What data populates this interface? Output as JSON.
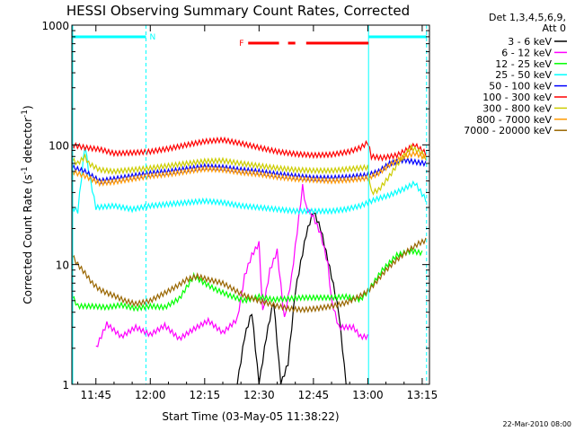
{
  "chart_data": {
    "type": "line",
    "title": "HESSI Observing Summary Count Rates, Corrected",
    "xlabel": "Start Time (03-May-05 11:38:22)",
    "ylabel_main": "Corrected Count Rate (s",
    "ylabel_sup1": "-1",
    "ylabel_mid": " detector",
    "ylabel_sup2": "-1",
    "ylabel_end": ")",
    "y_scale": "log",
    "ylim": [
      1,
      1000
    ],
    "x_range_minutes": [
      698.37,
      797.0
    ],
    "x_ticks": [
      {
        "label": "11:45",
        "minute": 705
      },
      {
        "label": "12:00",
        "minute": 720
      },
      {
        "label": "12:15",
        "minute": 735
      },
      {
        "label": "12:30",
        "minute": 750
      },
      {
        "label": "12:45",
        "minute": 765
      },
      {
        "label": "13:00",
        "minute": 780
      },
      {
        "label": "13:15",
        "minute": 795
      }
    ],
    "y_ticks": [
      {
        "label": "1",
        "value": 1
      },
      {
        "label": "10",
        "value": 10
      },
      {
        "label": "100",
        "value": 100
      },
      {
        "label": "1000",
        "value": 1000
      }
    ],
    "legend": {
      "position": "right",
      "header": [
        "Det 1,3,4,5,6,9,",
        "Att 0"
      ]
    },
    "series": [
      {
        "name": "3 - 6 keV",
        "color": "#000000",
        "points": [
          [
            744,
            1.0
          ],
          [
            746,
            2.5
          ],
          [
            748,
            4.0
          ],
          [
            750,
            1.0
          ],
          [
            752,
            2.5
          ],
          [
            754,
            5.0
          ],
          [
            756,
            1.0
          ],
          [
            758,
            1.5
          ],
          [
            760,
            6.0
          ],
          [
            763,
            18.0
          ],
          [
            765,
            28.0
          ],
          [
            767,
            20.0
          ],
          [
            770,
            8.0
          ],
          [
            772,
            4.0
          ],
          [
            774,
            1.0
          ]
        ]
      },
      {
        "name": "6 - 12 keV",
        "color": "#ff00ff",
        "points": [
          [
            705,
            2.0
          ],
          [
            708,
            3.2
          ],
          [
            712,
            2.5
          ],
          [
            716,
            3.0
          ],
          [
            720,
            2.6
          ],
          [
            724,
            3.1
          ],
          [
            728,
            2.4
          ],
          [
            732,
            2.9
          ],
          [
            736,
            3.4
          ],
          [
            740,
            2.7
          ],
          [
            744,
            3.5
          ],
          [
            746,
            8.0
          ],
          [
            748,
            12.0
          ],
          [
            750,
            15.0
          ],
          [
            751,
            4.0
          ],
          [
            753,
            9.0
          ],
          [
            755,
            13.0
          ],
          [
            757,
            3.5
          ],
          [
            759,
            8.0
          ],
          [
            761,
            25.0
          ],
          [
            762,
            45.0
          ],
          [
            763,
            30.0
          ],
          [
            765,
            25.0
          ],
          [
            767,
            18.0
          ],
          [
            769,
            10.0
          ],
          [
            770,
            5.0
          ],
          [
            772,
            3.0
          ],
          [
            776,
            3.0
          ],
          [
            778,
            2.5
          ],
          [
            780,
            2.5
          ]
        ]
      },
      {
        "name": "12 - 25 keV",
        "color": "#00ff00",
        "points": [
          [
            698.4,
            5.5
          ],
          [
            700,
            4.5
          ],
          [
            704,
            4.5
          ],
          [
            708,
            4.4
          ],
          [
            712,
            4.6
          ],
          [
            716,
            4.3
          ],
          [
            720,
            4.5
          ],
          [
            724,
            4.4
          ],
          [
            728,
            5.2
          ],
          [
            732,
            8.0
          ],
          [
            735,
            7.0
          ],
          [
            738,
            6.2
          ],
          [
            742,
            5.5
          ],
          [
            746,
            5.0
          ],
          [
            750,
            5.4
          ],
          [
            754,
            5.1
          ],
          [
            758,
            5.2
          ],
          [
            762,
            5.3
          ],
          [
            766,
            5.3
          ],
          [
            770,
            5.3
          ],
          [
            774,
            5.4
          ],
          [
            778,
            5.1
          ],
          [
            780,
            6.0
          ],
          [
            784,
            9.0
          ],
          [
            788,
            12.0
          ],
          [
            792,
            13.0
          ],
          [
            795,
            12.5
          ]
        ]
      },
      {
        "name": "25 - 50 keV",
        "color": "#00ffff",
        "points": [
          [
            698.4,
            30.0
          ],
          [
            700,
            28.0
          ],
          [
            702,
            100.0
          ],
          [
            703,
            60.0
          ],
          [
            705,
            30.0
          ],
          [
            710,
            31.0
          ],
          [
            715,
            29.0
          ],
          [
            720,
            31.0
          ],
          [
            725,
            32.0
          ],
          [
            730,
            33.0
          ],
          [
            735,
            34.0
          ],
          [
            740,
            33.0
          ],
          [
            745,
            31.0
          ],
          [
            750,
            30.0
          ],
          [
            755,
            29.0
          ],
          [
            760,
            28.0
          ],
          [
            765,
            28.0
          ],
          [
            770,
            28.0
          ],
          [
            774,
            29.0
          ],
          [
            778,
            31.0
          ],
          [
            782,
            35.0
          ],
          [
            786,
            38.0
          ],
          [
            790,
            43.0
          ],
          [
            793,
            48.0
          ],
          [
            796,
            35.0
          ]
        ]
      },
      {
        "name": "50 - 100 keV",
        "color": "#0000ff",
        "points": [
          [
            698.4,
            65.0
          ],
          [
            702,
            60.0
          ],
          [
            706,
            50.0
          ],
          [
            710,
            52.0
          ],
          [
            715,
            55.0
          ],
          [
            720,
            58.0
          ],
          [
            725,
            60.0
          ],
          [
            730,
            63.0
          ],
          [
            735,
            66.0
          ],
          [
            740,
            65.0
          ],
          [
            745,
            62.0
          ],
          [
            750,
            60.0
          ],
          [
            755,
            57.0
          ],
          [
            760,
            55.0
          ],
          [
            765,
            53.0
          ],
          [
            770,
            53.0
          ],
          [
            775,
            54.0
          ],
          [
            780,
            56.0
          ],
          [
            783,
            60.0
          ],
          [
            786,
            70.0
          ],
          [
            790,
            75.0
          ],
          [
            793,
            72.0
          ],
          [
            796,
            70.0
          ]
        ]
      },
      {
        "name": "100 - 300 keV",
        "color": "#ff0000",
        "points": [
          [
            698.4,
            100.0
          ],
          [
            702,
            95.0
          ],
          [
            706,
            92.0
          ],
          [
            710,
            85.0
          ],
          [
            715,
            86.0
          ],
          [
            720,
            88.0
          ],
          [
            725,
            93.0
          ],
          [
            730,
            100.0
          ],
          [
            735,
            107.0
          ],
          [
            740,
            110.0
          ],
          [
            745,
            103.0
          ],
          [
            750,
            95.0
          ],
          [
            755,
            88.0
          ],
          [
            760,
            84.0
          ],
          [
            765,
            82.0
          ],
          [
            770,
            83.0
          ],
          [
            775,
            88.0
          ],
          [
            778,
            95.0
          ],
          [
            780,
            105.0
          ],
          [
            781,
            80.0
          ],
          [
            784,
            78.0
          ],
          [
            788,
            82.0
          ],
          [
            791,
            92.0
          ],
          [
            793,
            100.0
          ],
          [
            796,
            85.0
          ]
        ]
      },
      {
        "name": "300 - 800 keV",
        "color": "#cccc00",
        "points": [
          [
            698.4,
            75.0
          ],
          [
            700,
            70.0
          ],
          [
            702,
            80.0
          ],
          [
            703,
            70.0
          ],
          [
            706,
            62.0
          ],
          [
            710,
            60.0
          ],
          [
            715,
            62.0
          ],
          [
            720,
            64.0
          ],
          [
            725,
            67.0
          ],
          [
            730,
            70.0
          ],
          [
            735,
            73.0
          ],
          [
            740,
            74.0
          ],
          [
            745,
            70.0
          ],
          [
            750,
            67.0
          ],
          [
            755,
            64.0
          ],
          [
            760,
            62.0
          ],
          [
            765,
            61.0
          ],
          [
            770,
            61.0
          ],
          [
            775,
            63.0
          ],
          [
            780,
            65.0
          ],
          [
            781,
            40.0
          ],
          [
            783,
            42.0
          ],
          [
            786,
            55.0
          ],
          [
            789,
            75.0
          ],
          [
            792,
            95.0
          ],
          [
            795,
            85.0
          ],
          [
            796,
            78.0
          ]
        ]
      },
      {
        "name": "800 - 7000 keV",
        "color": "#ff9900",
        "points": [
          [
            698.4,
            60.0
          ],
          [
            702,
            55.0
          ],
          [
            706,
            48.0
          ],
          [
            710,
            49.0
          ],
          [
            715,
            52.0
          ],
          [
            720,
            55.0
          ],
          [
            725,
            57.0
          ],
          [
            730,
            60.0
          ],
          [
            735,
            63.0
          ],
          [
            740,
            62.0
          ],
          [
            745,
            59.0
          ],
          [
            750,
            57.0
          ],
          [
            755,
            54.0
          ],
          [
            760,
            52.0
          ],
          [
            765,
            51.0
          ],
          [
            770,
            50.0
          ],
          [
            775,
            51.0
          ],
          [
            780,
            53.0
          ],
          [
            783,
            58.0
          ],
          [
            786,
            68.0
          ],
          [
            790,
            80.0
          ],
          [
            793,
            85.0
          ],
          [
            796,
            78.0
          ]
        ]
      },
      {
        "name": "7000 - 20000 keV",
        "color": "#996600",
        "points": [
          [
            698.4,
            12.0
          ],
          [
            700,
            10.0
          ],
          [
            702,
            8.5
          ],
          [
            704,
            7.0
          ],
          [
            706,
            6.2
          ],
          [
            708,
            5.8
          ],
          [
            710,
            5.5
          ],
          [
            713,
            5.0
          ],
          [
            716,
            4.7
          ],
          [
            720,
            5.0
          ],
          [
            724,
            5.8
          ],
          [
            728,
            6.8
          ],
          [
            730,
            7.5
          ],
          [
            733,
            8.0
          ],
          [
            736,
            7.5
          ],
          [
            740,
            7.0
          ],
          [
            743,
            6.2
          ],
          [
            746,
            5.5
          ],
          [
            750,
            5.0
          ],
          [
            754,
            4.6
          ],
          [
            758,
            4.3
          ],
          [
            762,
            4.2
          ],
          [
            766,
            4.3
          ],
          [
            770,
            4.5
          ],
          [
            774,
            4.8
          ],
          [
            778,
            5.5
          ],
          [
            780,
            6.0
          ],
          [
            782,
            7.0
          ],
          [
            785,
            9.0
          ],
          [
            788,
            11.0
          ],
          [
            791,
            13.0
          ],
          [
            794,
            15.0
          ],
          [
            796,
            16.0
          ]
        ]
      }
    ],
    "annotations": {
      "night_bar": {
        "label": "N",
        "color": "#00ffff"
      },
      "flare_bar": {
        "label": "F",
        "color": "#ff0000"
      }
    },
    "footer_date": "22-Mar-2010 08:00"
  }
}
